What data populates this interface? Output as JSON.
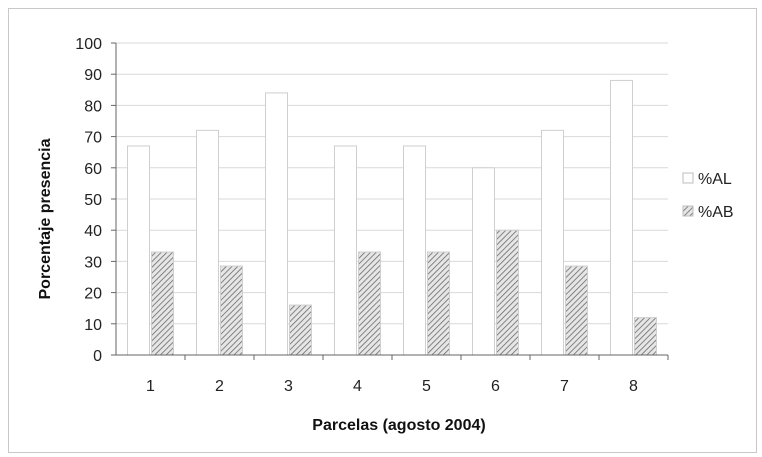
{
  "chart_data": {
    "type": "bar",
    "title": "",
    "xlabel": "Parcelas (agosto 2004)",
    "ylabel": "Porcentaje presencia",
    "categories": [
      "1",
      "2",
      "3",
      "4",
      "5",
      "6",
      "7",
      "8"
    ],
    "series": [
      {
        "name": "%AL",
        "values": [
          67,
          72,
          84,
          67,
          67,
          60,
          72,
          88
        ],
        "color": "#ffffff",
        "pattern": "none"
      },
      {
        "name": "%AB",
        "values": [
          33,
          28.5,
          16,
          33,
          33,
          40,
          28.5,
          12
        ],
        "color": "#cfcfcf",
        "pattern": "diagonal-hatch"
      }
    ],
    "yticks": [
      "0",
      "10",
      "20",
      "30",
      "40",
      "50",
      "60",
      "70",
      "80",
      "90",
      "100"
    ],
    "ylim": [
      0,
      100
    ],
    "grid": true,
    "legend_position": "right"
  }
}
